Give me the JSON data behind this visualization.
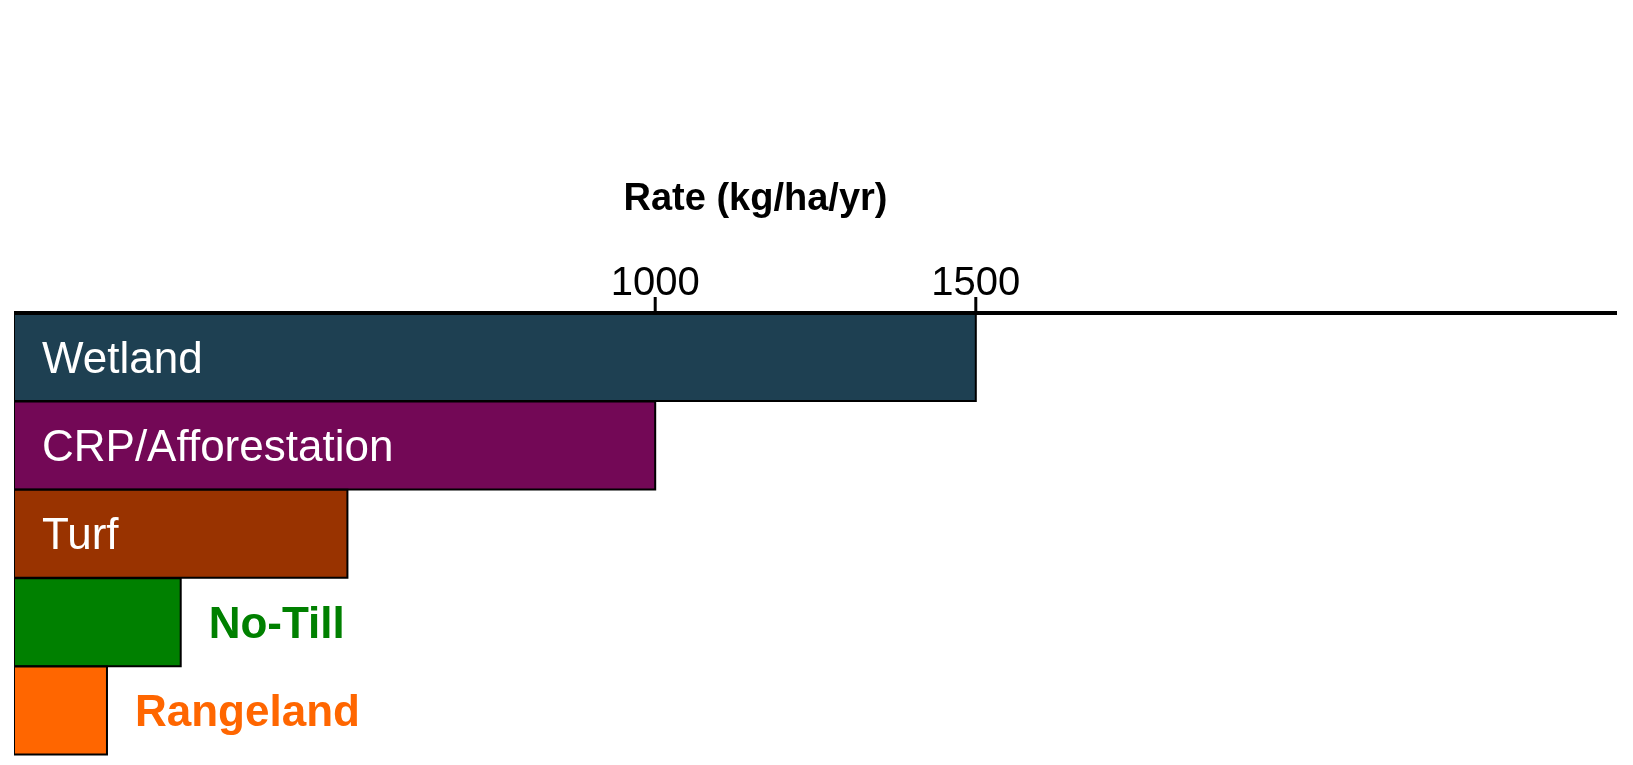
{
  "chart_data": {
    "type": "bar",
    "orientation": "horizontal",
    "xlabel": "Rate (kg/ha/yr)",
    "categories": [
      "Wetland",
      "CRP/Afforestation",
      "Turf",
      "No-Till",
      "Rangeland"
    ],
    "values": [
      1500,
      1000,
      520,
      260,
      145
    ],
    "colors": [
      "#1e4052",
      "#730856",
      "#993300",
      "#008000",
      "#ff6600"
    ],
    "xlim": [
      0,
      2500
    ],
    "xticks": [
      1000,
      1500
    ],
    "grid": false,
    "legend": false
  }
}
